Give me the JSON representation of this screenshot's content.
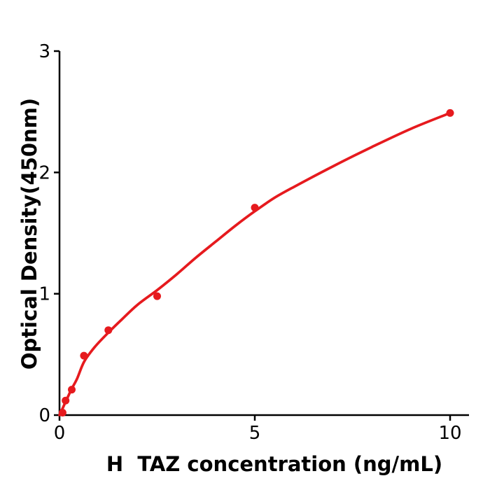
{
  "chart_data": {
    "type": "scatter",
    "title": "",
    "xlabel": "H  TAZ concentration (ng/mL)",
    "ylabel": "Optical Density(450nm)",
    "xlim": [
      0,
      10.5
    ],
    "ylim": [
      0,
      3
    ],
    "x_ticks": [
      "0",
      "5",
      "10"
    ],
    "x_tick_values": [
      0,
      5,
      10
    ],
    "y_ticks": [
      "0",
      "1",
      "2",
      "3"
    ],
    "y_tick_values": [
      0,
      1,
      2,
      3
    ],
    "grid": false,
    "legend": "none",
    "series": [
      {
        "name": "standard-points",
        "style": "scatter",
        "points": [
          [
            0.078,
            0.02
          ],
          [
            0.156,
            0.12
          ],
          [
            0.313,
            0.21
          ],
          [
            0.625,
            0.49
          ],
          [
            1.25,
            0.7
          ],
          [
            2.5,
            0.98
          ],
          [
            5,
            1.71
          ],
          [
            10,
            2.49
          ]
        ]
      },
      {
        "name": "fitted-curve",
        "style": "line",
        "points": [
          [
            0,
            0
          ],
          [
            0.1,
            0.07
          ],
          [
            0.2,
            0.14
          ],
          [
            0.31,
            0.215
          ],
          [
            0.45,
            0.3
          ],
          [
            0.63,
            0.44
          ],
          [
            0.9,
            0.56
          ],
          [
            1.25,
            0.68
          ],
          [
            1.6,
            0.79
          ],
          [
            2.0,
            0.91
          ],
          [
            2.5,
            1.03
          ],
          [
            3.0,
            1.16
          ],
          [
            3.5,
            1.3
          ],
          [
            4.0,
            1.43
          ],
          [
            4.5,
            1.56
          ],
          [
            5.0,
            1.68
          ],
          [
            5.5,
            1.79
          ],
          [
            6.0,
            1.88
          ],
          [
            7.0,
            2.05
          ],
          [
            8.0,
            2.21
          ],
          [
            9.0,
            2.36
          ],
          [
            10,
            2.49
          ]
        ]
      }
    ],
    "colors": {
      "point_color": "#e61a1e",
      "line_color": "#e61a1e",
      "axis_color": "#000000",
      "text_color": "#000000",
      "background": "#ffffff"
    }
  }
}
